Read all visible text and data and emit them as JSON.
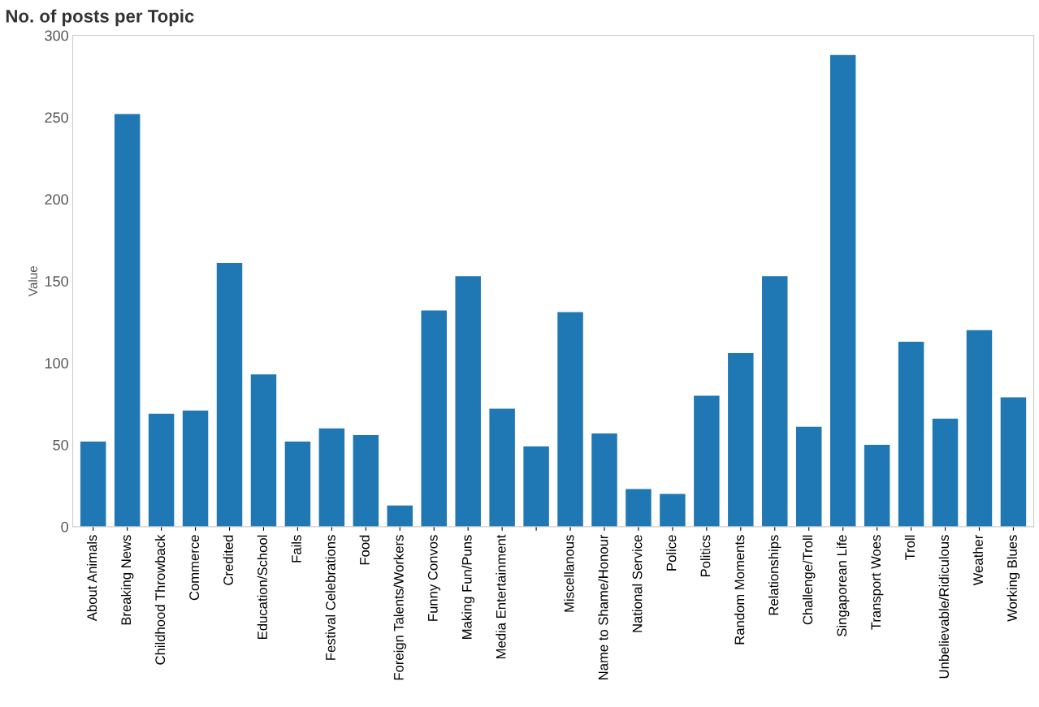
{
  "chart_data": {
    "type": "bar",
    "title": "No. of posts per Topic",
    "ylabel": "Value",
    "categories": [
      "About Animals",
      "Breaking News",
      "Childhood Throwback",
      "Commerce",
      "Credited",
      "Education/School",
      "Fails",
      "Festival Celebrations",
      "Food",
      "Foreign Talents/Workers",
      "Funny Convos",
      "Making Fun/Puns",
      "Media Entertainment",
      null,
      "Miscellanous",
      "Name to Shame/Honour",
      "National Service",
      "Police",
      "Politics",
      "Random Moments",
      "Relationships",
      "Challenge/Troll",
      "Singaporean Life",
      "Transport Woes",
      "Troll",
      "Unbelievable/Ridiculous",
      "Weather",
      "Working Blues"
    ],
    "values": [
      52,
      252,
      69,
      71,
      161,
      93,
      52,
      60,
      56,
      13,
      132,
      153,
      72,
      49,
      131,
      57,
      23,
      20,
      80,
      106,
      153,
      61,
      288,
      50,
      113,
      66,
      120,
      79
    ],
    "color": "#1f77b4",
    "ylim": [
      0,
      300
    ],
    "yticks": [
      0,
      50,
      100,
      150,
      200,
      250,
      300
    ],
    "grid": false
  }
}
